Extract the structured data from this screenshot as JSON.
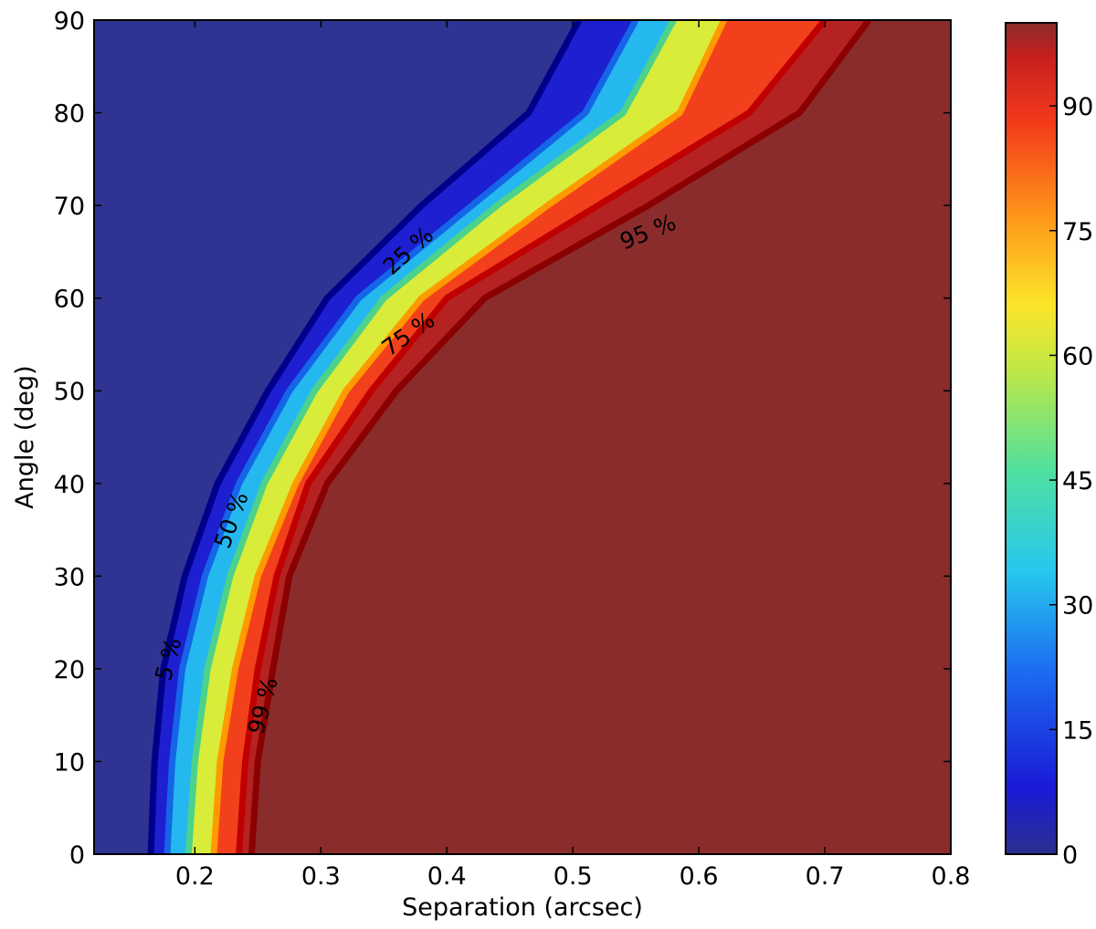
{
  "chart_data": {
    "type": "heatmap",
    "title": "",
    "xlabel": "Separation (arcsec)",
    "ylabel": "Angle (deg)",
    "xlim": [
      0.12,
      0.8
    ],
    "ylim": [
      0,
      90
    ],
    "x_ticks": [
      0.2,
      0.3,
      0.4,
      0.5,
      0.6,
      0.7,
      0.8
    ],
    "x_tick_labels": [
      "0.2",
      "0.3",
      "0.4",
      "0.5",
      "0.6",
      "0.7",
      "0.8"
    ],
    "y_ticks": [
      0,
      10,
      20,
      30,
      40,
      50,
      60,
      70,
      80,
      90
    ],
    "y_tick_labels": [
      "0",
      "10",
      "20",
      "30",
      "40",
      "50",
      "60",
      "70",
      "80",
      "90"
    ],
    "colorbar": {
      "range": [
        0,
        100
      ],
      "ticks": [
        0,
        15,
        30,
        45,
        60,
        75,
        90
      ],
      "tick_labels": [
        "0",
        "15",
        "30",
        "45",
        "60",
        "75",
        "90"
      ],
      "colormap": "jet"
    },
    "contours": [
      {
        "level": 5,
        "label": "5 %",
        "color": "#00008b",
        "angles": [
          0,
          10,
          20,
          30,
          40,
          50,
          60,
          70,
          80,
          90
        ],
        "separations": [
          0.165,
          0.168,
          0.175,
          0.192,
          0.218,
          0.258,
          0.305,
          0.38,
          0.465,
          0.505
        ]
      },
      {
        "level": 25,
        "label": "25 %",
        "color": "#1565e8",
        "angles": [
          0,
          10,
          20,
          30,
          40,
          50,
          60,
          70,
          80,
          90
        ],
        "separations": [
          0.178,
          0.182,
          0.19,
          0.208,
          0.235,
          0.275,
          0.33,
          0.42,
          0.51,
          0.55
        ]
      },
      {
        "level": 50,
        "label": "50 %",
        "color": "#4cd28a",
        "angles": [
          0,
          10,
          20,
          30,
          40,
          50,
          60,
          70,
          80,
          90
        ],
        "separations": [
          0.195,
          0.2,
          0.21,
          0.228,
          0.255,
          0.295,
          0.35,
          0.44,
          0.54,
          0.58
        ]
      },
      {
        "level": 75,
        "label": "75 %",
        "color": "#ff9a00",
        "angles": [
          0,
          10,
          20,
          30,
          40,
          50,
          60,
          70,
          80,
          90
        ],
        "separations": [
          0.215,
          0.22,
          0.232,
          0.25,
          0.28,
          0.32,
          0.38,
          0.48,
          0.585,
          0.62
        ]
      },
      {
        "level": 95,
        "label": "95 %",
        "color": "#c00000",
        "angles": [
          0,
          10,
          20,
          30,
          40,
          50,
          60,
          70,
          80,
          90
        ],
        "separations": [
          0.235,
          0.24,
          0.25,
          0.265,
          0.29,
          0.34,
          0.4,
          0.52,
          0.64,
          0.7
        ]
      },
      {
        "level": 99,
        "label": "99 %",
        "color": "#8b0000",
        "angles": [
          0,
          10,
          20,
          30,
          40,
          50,
          60,
          70,
          80,
          90
        ],
        "separations": [
          0.245,
          0.25,
          0.262,
          0.275,
          0.305,
          0.36,
          0.43,
          0.56,
          0.68,
          0.735
        ]
      }
    ],
    "contour_label_positions": [
      {
        "label": "5 %",
        "x": 0.18,
        "y": 21,
        "rotation_deg": -75
      },
      {
        "label": "25 %",
        "x": 0.37,
        "y": 65,
        "rotation_deg": -42
      },
      {
        "label": "50 %",
        "x": 0.23,
        "y": 36,
        "rotation_deg": -70
      },
      {
        "label": "75 %",
        "x": 0.37,
        "y": 56,
        "rotation_deg": -35
      },
      {
        "label": "95 %",
        "x": 0.56,
        "y": 67,
        "rotation_deg": -22
      },
      {
        "label": "99 %",
        "x": 0.255,
        "y": 16,
        "rotation_deg": -75
      }
    ],
    "background_low_color": "#2f3392",
    "background_high_color": "#8b2c2c",
    "grid": false,
    "legend": "colorbar-right"
  }
}
